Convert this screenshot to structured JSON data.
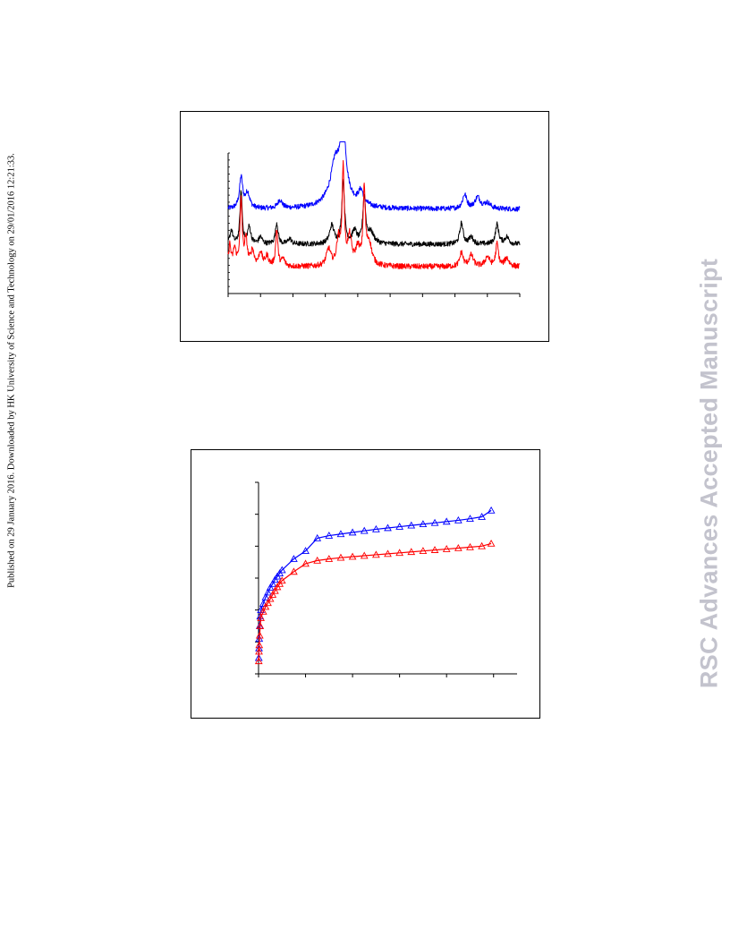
{
  "side_note": "Published on 29 January 2016. Downloaded by HK University of Science and Technology on 29/01/2016 12:21:33.",
  "watermark": "RSC Advances Accepted Manuscript",
  "chart_data": [
    {
      "type": "line",
      "xlim": [
        0,
        9
      ],
      "ylim": [
        0,
        10
      ],
      "x_ticks": 10,
      "y_minor_ticks": 21,
      "grid": false,
      "series": [
        {
          "color": "#0000ff",
          "baseline": 6.0,
          "noise": 0.18,
          "peaks": [
            [
              0.4,
              2.2,
              0.06
            ],
            [
              0.6,
              1.1,
              0.08
            ],
            [
              1.6,
              0.6,
              0.08
            ],
            [
              3.3,
              2.0,
              0.15
            ],
            [
              3.55,
              4.6,
              0.1
            ],
            [
              3.4,
              1.4,
              0.35
            ],
            [
              4.1,
              1.0,
              0.1
            ],
            [
              7.3,
              1.0,
              0.08
            ],
            [
              7.7,
              0.8,
              0.1
            ],
            [
              8.0,
              0.4,
              0.12
            ]
          ]
        },
        {
          "color": "#000000",
          "baseline": 3.5,
          "noise": 0.18,
          "peaks": [
            [
              0.1,
              1.0,
              0.05
            ],
            [
              0.4,
              3.8,
              0.04
            ],
            [
              0.65,
              1.2,
              0.06
            ],
            [
              1.0,
              0.5,
              0.06
            ],
            [
              1.5,
              1.5,
              0.05
            ],
            [
              1.9,
              0.4,
              0.06
            ],
            [
              3.2,
              1.3,
              0.08
            ],
            [
              3.55,
              4.5,
              0.05
            ],
            [
              3.9,
              0.9,
              0.08
            ],
            [
              4.2,
              3.3,
              0.05
            ],
            [
              4.4,
              0.8,
              0.12
            ],
            [
              7.2,
              1.5,
              0.06
            ],
            [
              7.5,
              0.5,
              0.08
            ],
            [
              8.3,
              1.4,
              0.06
            ],
            [
              8.6,
              0.5,
              0.08
            ]
          ]
        },
        {
          "color": "#ff0000",
          "baseline": 1.9,
          "noise": 0.2,
          "peaks": [
            [
              0.05,
              1.5,
              0.04
            ],
            [
              0.2,
              1.2,
              0.05
            ],
            [
              0.4,
              4.6,
              0.04
            ],
            [
              0.55,
              1.8,
              0.05
            ],
            [
              0.75,
              1.1,
              0.06
            ],
            [
              1.0,
              1.0,
              0.06
            ],
            [
              1.2,
              0.7,
              0.06
            ],
            [
              1.5,
              2.6,
              0.04
            ],
            [
              1.7,
              0.5,
              0.06
            ],
            [
              3.1,
              1.2,
              0.08
            ],
            [
              3.4,
              1.8,
              0.06
            ],
            [
              3.55,
              6.9,
              0.04
            ],
            [
              3.75,
              2.0,
              0.07
            ],
            [
              4.0,
              1.2,
              0.08
            ],
            [
              4.2,
              5.2,
              0.04
            ],
            [
              4.35,
              1.6,
              0.1
            ],
            [
              7.2,
              1.0,
              0.06
            ],
            [
              7.5,
              0.8,
              0.08
            ],
            [
              8.0,
              0.7,
              0.08
            ],
            [
              8.3,
              1.6,
              0.05
            ],
            [
              8.6,
              0.6,
              0.08
            ]
          ]
        }
      ]
    },
    {
      "type": "line",
      "markers": "open-triangle",
      "xlim": [
        0,
        1.1
      ],
      "ylim": [
        0,
        6
      ],
      "x_ticks": [
        0,
        0.2,
        0.4,
        0.6,
        0.8,
        1.0
      ],
      "y_ticks": [
        0,
        1,
        2,
        3,
        4,
        5,
        6
      ],
      "grid": false,
      "series": [
        {
          "color": "#0000ff",
          "x": [
            0.001,
            0.002,
            0.003,
            0.005,
            0.007,
            0.01,
            0.02,
            0.03,
            0.04,
            0.05,
            0.06,
            0.07,
            0.08,
            0.09,
            0.1,
            0.15,
            0.2,
            0.25,
            0.3,
            0.35,
            0.4,
            0.45,
            0.5,
            0.55,
            0.6,
            0.65,
            0.7,
            0.75,
            0.8,
            0.85,
            0.9,
            0.95,
            0.99
          ],
          "y": [
            0.5,
            0.8,
            1.1,
            1.5,
            1.8,
            2.0,
            2.2,
            2.4,
            2.55,
            2.7,
            2.82,
            2.95,
            3.05,
            3.15,
            3.25,
            3.6,
            3.85,
            4.25,
            4.33,
            4.38,
            4.43,
            4.48,
            4.53,
            4.57,
            4.61,
            4.65,
            4.69,
            4.73,
            4.77,
            4.81,
            4.86,
            4.92,
            5.12
          ]
        },
        {
          "color": "#ff0000",
          "x": [
            0.001,
            0.002,
            0.003,
            0.005,
            0.007,
            0.01,
            0.02,
            0.03,
            0.04,
            0.05,
            0.06,
            0.07,
            0.08,
            0.09,
            0.1,
            0.15,
            0.2,
            0.25,
            0.3,
            0.35,
            0.4,
            0.45,
            0.5,
            0.55,
            0.6,
            0.65,
            0.7,
            0.75,
            0.8,
            0.85,
            0.9,
            0.95,
            0.99
          ],
          "y": [
            0.4,
            0.7,
            0.9,
            1.2,
            1.5,
            1.75,
            1.95,
            2.1,
            2.22,
            2.35,
            2.48,
            2.6,
            2.72,
            2.82,
            2.92,
            3.2,
            3.45,
            3.55,
            3.6,
            3.64,
            3.67,
            3.7,
            3.73,
            3.76,
            3.79,
            3.82,
            3.85,
            3.88,
            3.91,
            3.94,
            3.97,
            4.0,
            4.08
          ]
        }
      ]
    }
  ]
}
